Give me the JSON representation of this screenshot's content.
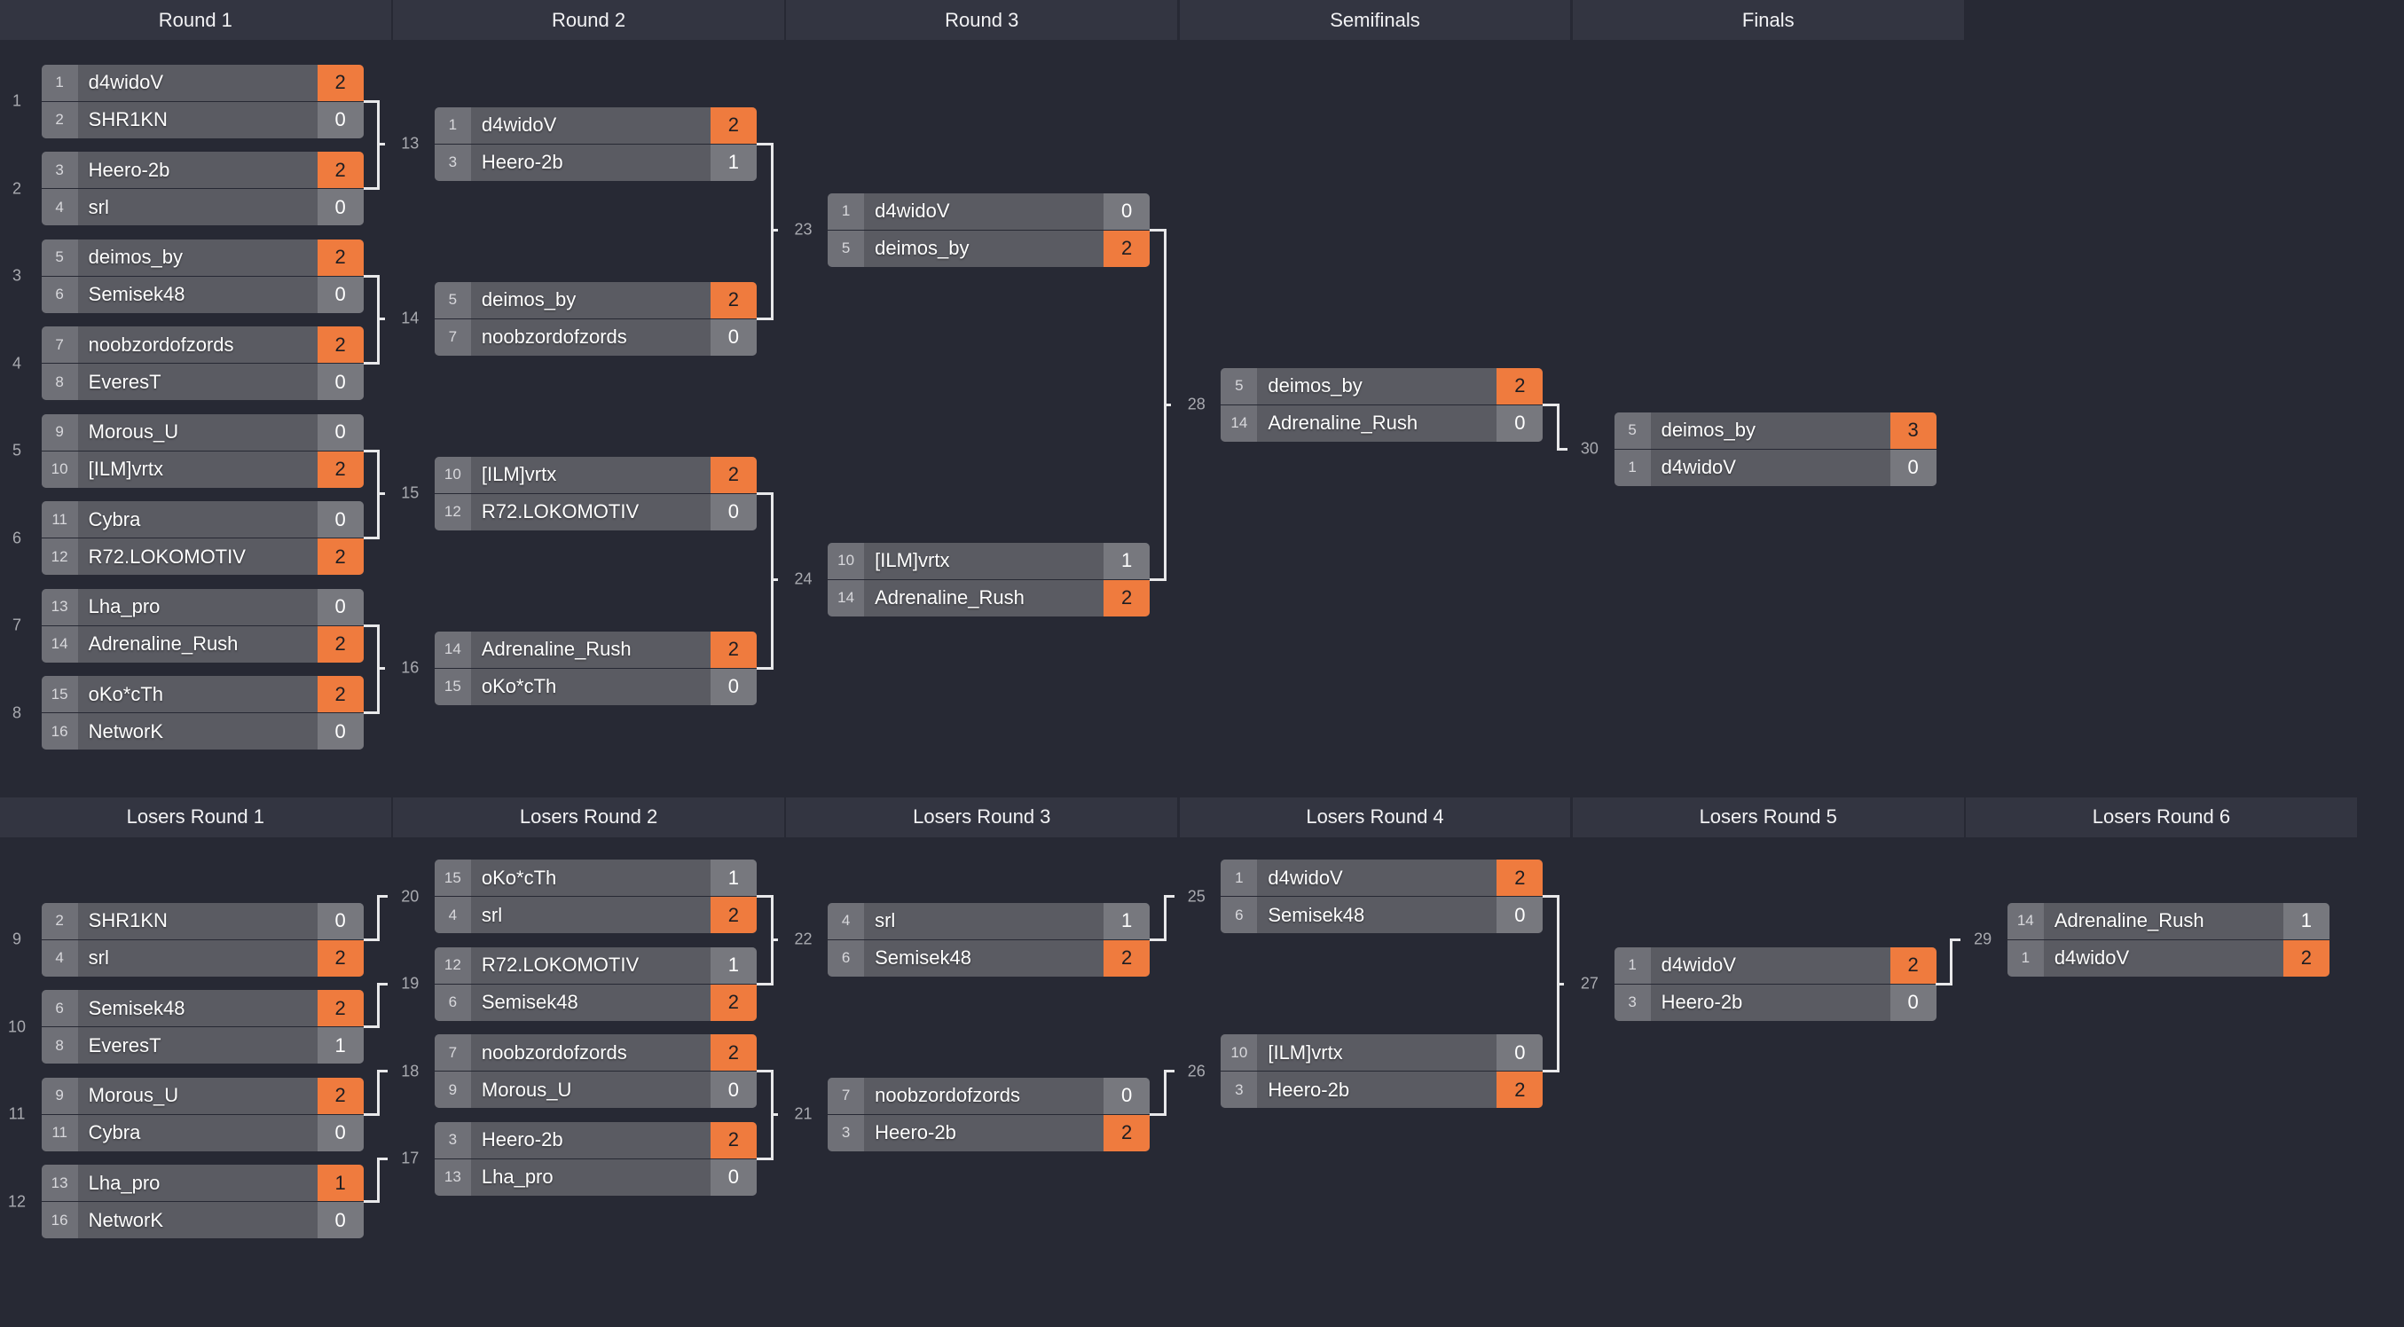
{
  "colors": {
    "background": "#272934",
    "header": "#333541",
    "winner_score": "#ef7b3e",
    "name_cell": "#5a5b62",
    "score_cell": "#77787e",
    "connector": "#e8e8ea"
  },
  "winners": {
    "headers": [
      "Round 1",
      "Round 2",
      "Round 3",
      "Semifinals",
      "Finals"
    ],
    "matches": [
      {
        "id": "1",
        "players": [
          {
            "seed": "1",
            "name": "d4widoV",
            "score": "2",
            "win": true
          },
          {
            "seed": "2",
            "name": "SHR1KN",
            "score": "0",
            "win": false
          }
        ]
      },
      {
        "id": "2",
        "players": [
          {
            "seed": "3",
            "name": "Heero-2b",
            "score": "2",
            "win": true
          },
          {
            "seed": "4",
            "name": "srl",
            "score": "0",
            "win": false
          }
        ]
      },
      {
        "id": "3",
        "players": [
          {
            "seed": "5",
            "name": "deimos_by",
            "score": "2",
            "win": true
          },
          {
            "seed": "6",
            "name": "Semisek48",
            "score": "0",
            "win": false
          }
        ]
      },
      {
        "id": "4",
        "players": [
          {
            "seed": "7",
            "name": "noobzordofzords",
            "score": "2",
            "win": true
          },
          {
            "seed": "8",
            "name": "EveresT",
            "score": "0",
            "win": false
          }
        ]
      },
      {
        "id": "5",
        "players": [
          {
            "seed": "9",
            "name": "Morous_U",
            "score": "0",
            "win": false
          },
          {
            "seed": "10",
            "name": "[ILM]vrtx",
            "score": "2",
            "win": true
          }
        ]
      },
      {
        "id": "6",
        "players": [
          {
            "seed": "11",
            "name": "Cybra",
            "score": "0",
            "win": false
          },
          {
            "seed": "12",
            "name": "R72.LOKOMOTIV",
            "score": "2",
            "win": true
          }
        ]
      },
      {
        "id": "7",
        "players": [
          {
            "seed": "13",
            "name": "Lha_pro",
            "score": "0",
            "win": false
          },
          {
            "seed": "14",
            "name": "Adrenaline_Rush",
            "score": "2",
            "win": true
          }
        ]
      },
      {
        "id": "8",
        "players": [
          {
            "seed": "15",
            "name": "oKo*cTh",
            "score": "2",
            "win": true
          },
          {
            "seed": "16",
            "name": "NetworK",
            "score": "0",
            "win": false
          }
        ]
      },
      {
        "id": "13",
        "players": [
          {
            "seed": "1",
            "name": "d4widoV",
            "score": "2",
            "win": true
          },
          {
            "seed": "3",
            "name": "Heero-2b",
            "score": "1",
            "win": false
          }
        ]
      },
      {
        "id": "14",
        "players": [
          {
            "seed": "5",
            "name": "deimos_by",
            "score": "2",
            "win": true
          },
          {
            "seed": "7",
            "name": "noobzordofzords",
            "score": "0",
            "win": false
          }
        ]
      },
      {
        "id": "15",
        "players": [
          {
            "seed": "10",
            "name": "[ILM]vrtx",
            "score": "2",
            "win": true
          },
          {
            "seed": "12",
            "name": "R72.LOKOMOTIV",
            "score": "0",
            "win": false
          }
        ]
      },
      {
        "id": "16",
        "players": [
          {
            "seed": "14",
            "name": "Adrenaline_Rush",
            "score": "2",
            "win": true
          },
          {
            "seed": "15",
            "name": "oKo*cTh",
            "score": "0",
            "win": false
          }
        ]
      },
      {
        "id": "23",
        "players": [
          {
            "seed": "1",
            "name": "d4widoV",
            "score": "0",
            "win": false
          },
          {
            "seed": "5",
            "name": "deimos_by",
            "score": "2",
            "win": true
          }
        ]
      },
      {
        "id": "24",
        "players": [
          {
            "seed": "10",
            "name": "[ILM]vrtx",
            "score": "1",
            "win": false
          },
          {
            "seed": "14",
            "name": "Adrenaline_Rush",
            "score": "2",
            "win": true
          }
        ]
      },
      {
        "id": "28",
        "players": [
          {
            "seed": "5",
            "name": "deimos_by",
            "score": "2",
            "win": true
          },
          {
            "seed": "14",
            "name": "Adrenaline_Rush",
            "score": "0",
            "win": false
          }
        ]
      },
      {
        "id": "30",
        "players": [
          {
            "seed": "5",
            "name": "deimos_by",
            "score": "3",
            "win": true
          },
          {
            "seed": "1",
            "name": "d4widoV",
            "score": "0",
            "win": false
          }
        ]
      }
    ]
  },
  "losers": {
    "headers": [
      "Losers Round 1",
      "Losers Round 2",
      "Losers Round 3",
      "Losers Round 4",
      "Losers Round 5",
      "Losers Round 6"
    ],
    "matches": [
      {
        "id": "9",
        "players": [
          {
            "seed": "2",
            "name": "SHR1KN",
            "score": "0",
            "win": false
          },
          {
            "seed": "4",
            "name": "srl",
            "score": "2",
            "win": true
          }
        ]
      },
      {
        "id": "10",
        "players": [
          {
            "seed": "6",
            "name": "Semisek48",
            "score": "2",
            "win": true
          },
          {
            "seed": "8",
            "name": "EveresT",
            "score": "1",
            "win": false
          }
        ]
      },
      {
        "id": "11",
        "players": [
          {
            "seed": "9",
            "name": "Morous_U",
            "score": "2",
            "win": true
          },
          {
            "seed": "11",
            "name": "Cybra",
            "score": "0",
            "win": false
          }
        ]
      },
      {
        "id": "12",
        "players": [
          {
            "seed": "13",
            "name": "Lha_pro",
            "score": "1",
            "win": true
          },
          {
            "seed": "16",
            "name": "NetworK",
            "score": "0",
            "win": false
          }
        ]
      },
      {
        "id": "20",
        "players": [
          {
            "seed": "15",
            "name": "oKo*cTh",
            "score": "1",
            "win": false
          },
          {
            "seed": "4",
            "name": "srl",
            "score": "2",
            "win": true
          }
        ]
      },
      {
        "id": "19",
        "players": [
          {
            "seed": "12",
            "name": "R72.LOKOMOTIV",
            "score": "1",
            "win": false
          },
          {
            "seed": "6",
            "name": "Semisek48",
            "score": "2",
            "win": true
          }
        ]
      },
      {
        "id": "18",
        "players": [
          {
            "seed": "7",
            "name": "noobzordofzords",
            "score": "2",
            "win": true
          },
          {
            "seed": "9",
            "name": "Morous_U",
            "score": "0",
            "win": false
          }
        ]
      },
      {
        "id": "17",
        "players": [
          {
            "seed": "3",
            "name": "Heero-2b",
            "score": "2",
            "win": true
          },
          {
            "seed": "13",
            "name": "Lha_pro",
            "score": "0",
            "win": false
          }
        ]
      },
      {
        "id": "22",
        "players": [
          {
            "seed": "4",
            "name": "srl",
            "score": "1",
            "win": false
          },
          {
            "seed": "6",
            "name": "Semisek48",
            "score": "2",
            "win": true
          }
        ]
      },
      {
        "id": "21",
        "players": [
          {
            "seed": "7",
            "name": "noobzordofzords",
            "score": "0",
            "win": false
          },
          {
            "seed": "3",
            "name": "Heero-2b",
            "score": "2",
            "win": true
          }
        ]
      },
      {
        "id": "25",
        "players": [
          {
            "seed": "1",
            "name": "d4widoV",
            "score": "2",
            "win": true
          },
          {
            "seed": "6",
            "name": "Semisek48",
            "score": "0",
            "win": false
          }
        ]
      },
      {
        "id": "26",
        "players": [
          {
            "seed": "10",
            "name": "[ILM]vrtx",
            "score": "0",
            "win": false
          },
          {
            "seed": "3",
            "name": "Heero-2b",
            "score": "2",
            "win": true
          }
        ]
      },
      {
        "id": "27",
        "players": [
          {
            "seed": "1",
            "name": "d4widoV",
            "score": "2",
            "win": true
          },
          {
            "seed": "3",
            "name": "Heero-2b",
            "score": "0",
            "win": false
          }
        ]
      },
      {
        "id": "29",
        "players": [
          {
            "seed": "14",
            "name": "Adrenaline_Rush",
            "score": "1",
            "win": false
          },
          {
            "seed": "1",
            "name": "d4widoV",
            "score": "2",
            "win": true
          }
        ]
      }
    ]
  }
}
